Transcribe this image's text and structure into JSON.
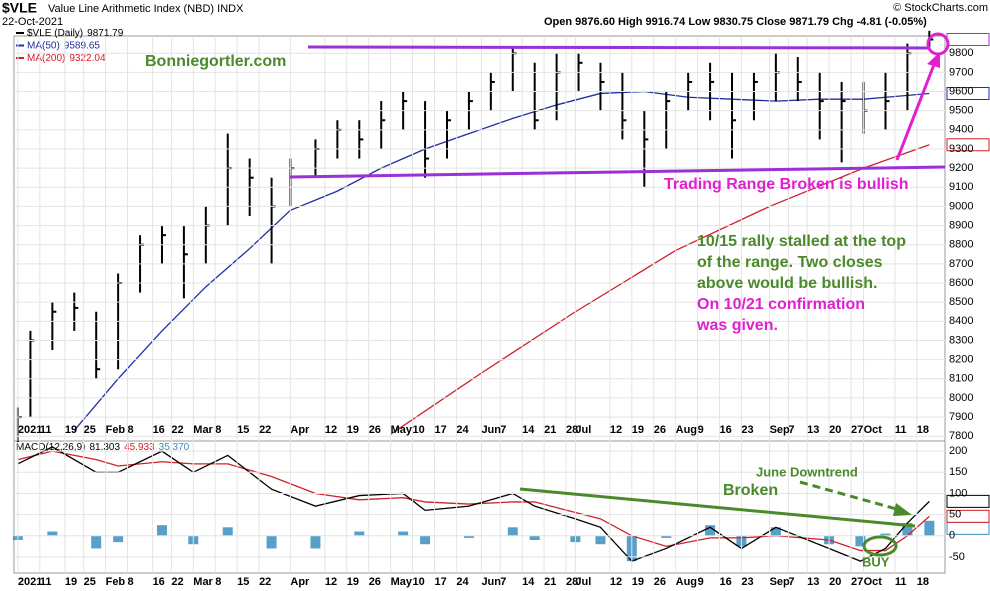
{
  "chart_data": [
    {
      "type": "ohlc",
      "title": "$VLE",
      "subtitle": "Value Line Arithmetic Index (NBD) INDX",
      "date": "22-Oct-2021",
      "source": "© StockCharts.com",
      "quote": [
        "Open 9876.60",
        "High 9916.74",
        "Low 9830.75",
        "Close 9871.79",
        "Chg -4.81 (-0.05%)"
      ],
      "xlim": [
        "2021-01-01",
        "2021-10-27"
      ],
      "ylim": [
        7775,
        9890
      ],
      "grid": true,
      "yticks": [
        7800,
        7900,
        8000,
        8100,
        8200,
        8300,
        8400,
        8500,
        8600,
        8700,
        8800,
        8900,
        9000,
        9100,
        9200,
        9300,
        9400,
        9500,
        9600,
        9700,
        9800
      ],
      "xticks": [
        {
          "value": "2021-01-04",
          "label": "2021"
        },
        {
          "value": "2021-01-11",
          "label": "11"
        },
        {
          "value": "2021-01-19",
          "label": "19"
        },
        {
          "value": "2021-01-25",
          "label": "25"
        },
        {
          "value": "2021-02-01",
          "label": "Feb"
        },
        {
          "value": "2021-02-08",
          "label": "8"
        },
        {
          "value": "2021-02-16",
          "label": "16"
        },
        {
          "value": "2021-02-22",
          "label": "22"
        },
        {
          "value": "2021-03-01",
          "label": "Mar"
        },
        {
          "value": "2021-03-08",
          "label": "8"
        },
        {
          "value": "2021-03-15",
          "label": "15"
        },
        {
          "value": "2021-03-22",
          "label": "22"
        },
        {
          "value": "2021-04-01",
          "label": "Apr"
        },
        {
          "value": "2021-04-12",
          "label": "12"
        },
        {
          "value": "2021-04-19",
          "label": "19"
        },
        {
          "value": "2021-04-26",
          "label": "26"
        },
        {
          "value": "2021-05-03",
          "label": "May"
        },
        {
          "value": "2021-05-10",
          "label": "10"
        },
        {
          "value": "2021-05-17",
          "label": "17"
        },
        {
          "value": "2021-05-24",
          "label": "24"
        },
        {
          "value": "2021-06-01",
          "label": "Jun"
        },
        {
          "value": "2021-06-07",
          "label": "7"
        },
        {
          "value": "2021-06-14",
          "label": "14"
        },
        {
          "value": "2021-06-21",
          "label": "21"
        },
        {
          "value": "2021-06-28",
          "label": "28"
        },
        {
          "value": "2021-07-01",
          "label": "Jul"
        },
        {
          "value": "2021-07-12",
          "label": "12"
        },
        {
          "value": "2021-07-19",
          "label": "19"
        },
        {
          "value": "2021-07-26",
          "label": "26"
        },
        {
          "value": "2021-08-02",
          "label": "Aug"
        },
        {
          "value": "2021-08-09",
          "label": "9"
        },
        {
          "value": "2021-08-16",
          "label": "16"
        },
        {
          "value": "2021-08-23",
          "label": "23"
        },
        {
          "value": "2021-09-01",
          "label": "Sep"
        },
        {
          "value": "2021-09-07",
          "label": "7"
        },
        {
          "value": "2021-09-13",
          "label": "13"
        },
        {
          "value": "2021-09-20",
          "label": "20"
        },
        {
          "value": "2021-09-27",
          "label": "27"
        },
        {
          "value": "2021-10-01",
          "label": "Oct"
        },
        {
          "value": "2021-10-11",
          "label": "11"
        },
        {
          "value": "2021-10-18",
          "label": "18"
        }
      ],
      "series": [
        {
          "name": "$VLE (Daily)",
          "kind": "ohlc",
          "color": "#000000",
          "box_color": "#9b30d9",
          "x": [
            "2021-01-04",
            "2021-01-08",
            "2021-01-15",
            "2021-01-22",
            "2021-01-29",
            "2021-02-05",
            "2021-02-12",
            "2021-02-19",
            "2021-02-26",
            "2021-03-05",
            "2021-03-12",
            "2021-03-19",
            "2021-03-26",
            "2021-04-01",
            "2021-04-09",
            "2021-04-16",
            "2021-04-23",
            "2021-04-30",
            "2021-05-07",
            "2021-05-14",
            "2021-05-21",
            "2021-05-28",
            "2021-06-04",
            "2021-06-11",
            "2021-06-18",
            "2021-06-25",
            "2021-07-02",
            "2021-07-09",
            "2021-07-16",
            "2021-07-23",
            "2021-07-30",
            "2021-08-06",
            "2021-08-13",
            "2021-08-20",
            "2021-08-27",
            "2021-09-03",
            "2021-09-10",
            "2021-09-17",
            "2021-09-24",
            "2021-10-01",
            "2021-10-08",
            "2021-10-15",
            "2021-10-22"
          ],
          "high": [
            7950,
            8350,
            8500,
            8550,
            8450,
            8650,
            8850,
            8900,
            8900,
            9000,
            9380,
            9250,
            9150,
            9250,
            9350,
            9450,
            9450,
            9550,
            9600,
            9550,
            9500,
            9600,
            9700,
            9830,
            9750,
            9800,
            9800,
            9750,
            9700,
            9500,
            9600,
            9700,
            9750,
            9700,
            9700,
            9800,
            9780,
            9700,
            9650,
            9650,
            9700,
            9850,
            9916.74
          ],
          "low": [
            7770,
            7900,
            8250,
            8350,
            8100,
            8150,
            8550,
            8700,
            8520,
            8700,
            8900,
            8950,
            8700,
            9000,
            9150,
            9250,
            9250,
            9300,
            9400,
            9150,
            9250,
            9400,
            9500,
            9600,
            9400,
            9450,
            9600,
            9500,
            9350,
            9100,
            9300,
            9500,
            9450,
            9250,
            9450,
            9550,
            9550,
            9350,
            9230,
            9380,
            9400,
            9500,
            9830.75
          ],
          "values": [
            7900,
            8300,
            8450,
            8470,
            8150,
            8600,
            8800,
            8850,
            8750,
            8900,
            9200,
            9150,
            9000,
            9200,
            9300,
            9400,
            9350,
            9450,
            9550,
            9250,
            9450,
            9550,
            9650,
            9800,
            9450,
            9700,
            9750,
            9650,
            9450,
            9350,
            9550,
            9650,
            9650,
            9450,
            9650,
            9700,
            9650,
            9550,
            9550,
            9500,
            9550,
            9800,
            9871.79
          ]
        },
        {
          "name": "MA(50)",
          "kind": "line",
          "color": "#1f2f9e",
          "x": [
            "2021-01-22",
            "2021-02-05",
            "2021-02-19",
            "2021-03-05",
            "2021-03-19",
            "2021-04-01",
            "2021-04-16",
            "2021-04-30",
            "2021-05-14",
            "2021-05-28",
            "2021-06-11",
            "2021-06-25",
            "2021-07-09",
            "2021-07-23",
            "2021-08-06",
            "2021-08-20",
            "2021-09-03",
            "2021-09-17",
            "2021-10-01",
            "2021-10-22"
          ],
          "values": [
            7830,
            8100,
            8350,
            8580,
            8780,
            8980,
            9080,
            9200,
            9300,
            9380,
            9460,
            9530,
            9590,
            9600,
            9570,
            9560,
            9550,
            9560,
            9560,
            9589.65
          ]
        },
        {
          "name": "MA(200)",
          "kind": "line",
          "color": "#d0202a",
          "x": [
            "2021-05-03",
            "2021-06-01",
            "2021-07-01",
            "2021-08-02",
            "2021-09-01",
            "2021-10-01",
            "2021-10-22"
          ],
          "values": [
            7810,
            8130,
            8450,
            8770,
            9000,
            9200,
            9322.04
          ]
        }
      ],
      "annotations": {
        "site": "Bonniegortler.com",
        "range": "Trading Range Broken is bullish",
        "rally": [
          "10/15 rally stalled at the top",
          "of the range.  Two closes",
          "above would be bullish."
        ],
        "confirm": [
          "On 10/21 confirmation",
          "was given."
        ]
      }
    },
    {
      "type": "macd",
      "title": "MACD(12,26,9)",
      "xlim": [
        "2021-01-01",
        "2021-10-27"
      ],
      "ylim": [
        -88,
        224
      ],
      "grid": true,
      "yticks": [
        -50,
        0,
        50,
        100,
        150,
        200
      ],
      "xticks": [
        {
          "value": "2021-01-04",
          "label": "2021"
        },
        {
          "value": "2021-01-11",
          "label": "11"
        },
        {
          "value": "2021-01-19",
          "label": "19"
        },
        {
          "value": "2021-01-25",
          "label": "25"
        },
        {
          "value": "2021-02-01",
          "label": "Feb"
        },
        {
          "value": "2021-02-08",
          "label": "8"
        },
        {
          "value": "2021-02-16",
          "label": "16"
        },
        {
          "value": "2021-02-22",
          "label": "22"
        },
        {
          "value": "2021-03-01",
          "label": "Mar"
        },
        {
          "value": "2021-03-08",
          "label": "8"
        },
        {
          "value": "2021-03-15",
          "label": "15"
        },
        {
          "value": "2021-03-22",
          "label": "22"
        },
        {
          "value": "2021-04-01",
          "label": "Apr"
        },
        {
          "value": "2021-04-12",
          "label": "12"
        },
        {
          "value": "2021-04-19",
          "label": "19"
        },
        {
          "value": "2021-04-26",
          "label": "26"
        },
        {
          "value": "2021-05-03",
          "label": "May"
        },
        {
          "value": "2021-05-10",
          "label": "10"
        },
        {
          "value": "2021-05-17",
          "label": "17"
        },
        {
          "value": "2021-05-24",
          "label": "24"
        },
        {
          "value": "2021-06-01",
          "label": "Jun"
        },
        {
          "value": "2021-06-07",
          "label": "7"
        },
        {
          "value": "2021-06-14",
          "label": "14"
        },
        {
          "value": "2021-06-21",
          "label": "21"
        },
        {
          "value": "2021-06-28",
          "label": "28"
        },
        {
          "value": "2021-07-01",
          "label": "Jul"
        },
        {
          "value": "2021-07-12",
          "label": "12"
        },
        {
          "value": "2021-07-19",
          "label": "19"
        },
        {
          "value": "2021-07-26",
          "label": "26"
        },
        {
          "value": "2021-08-02",
          "label": "Aug"
        },
        {
          "value": "2021-08-09",
          "label": "9"
        },
        {
          "value": "2021-08-16",
          "label": "16"
        },
        {
          "value": "2021-08-23",
          "label": "23"
        },
        {
          "value": "2021-09-01",
          "label": "Sep"
        },
        {
          "value": "2021-09-07",
          "label": "7"
        },
        {
          "value": "2021-09-13",
          "label": "13"
        },
        {
          "value": "2021-09-20",
          "label": "20"
        },
        {
          "value": "2021-09-27",
          "label": "27"
        },
        {
          "value": "2021-10-01",
          "label": "Oct"
        },
        {
          "value": "2021-10-11",
          "label": "11"
        },
        {
          "value": "2021-10-18",
          "label": "18"
        }
      ],
      "x": [
        "2021-01-04",
        "2021-01-15",
        "2021-01-29",
        "2021-02-05",
        "2021-02-19",
        "2021-03-01",
        "2021-03-12",
        "2021-03-26",
        "2021-04-09",
        "2021-04-23",
        "2021-05-07",
        "2021-05-14",
        "2021-05-28",
        "2021-06-11",
        "2021-06-18",
        "2021-07-01",
        "2021-07-09",
        "2021-07-19",
        "2021-07-30",
        "2021-08-13",
        "2021-08-23",
        "2021-09-03",
        "2021-09-20",
        "2021-09-30",
        "2021-10-08",
        "2021-10-15",
        "2021-10-22"
      ],
      "series": [
        {
          "kind": "bar",
          "color": "#3a8fc0",
          "values": [
            -10,
            10,
            -30,
            -15,
            25,
            -20,
            20,
            -30,
            -30,
            10,
            10,
            -20,
            -5,
            20,
            -10,
            -15,
            -20,
            -60,
            -5,
            25,
            -25,
            20,
            -20,
            -25,
            5,
            30,
            35.37
          ],
          "value_labels": [
            null,
            null,
            null,
            null,
            null,
            null,
            null,
            null,
            null,
            null,
            null,
            null,
            null,
            null,
            null,
            null,
            null,
            null,
            null,
            null,
            null,
            null,
            null,
            null,
            null,
            null,
            "35.370"
          ]
        },
        {
          "kind": "line",
          "color": "#000000",
          "values": [
            170,
            210,
            150,
            150,
            200,
            150,
            190,
            110,
            70,
            95,
            100,
            60,
            70,
            100,
            70,
            40,
            20,
            -60,
            -30,
            20,
            -30,
            20,
            -30,
            -60,
            -30,
            30,
            81.303
          ]
        },
        {
          "kind": "line",
          "color": "#d0202a",
          "values": [
            180,
            200,
            180,
            165,
            175,
            170,
            170,
            140,
            100,
            85,
            90,
            80,
            75,
            80,
            80,
            55,
            40,
            0,
            -25,
            -5,
            -5,
            0,
            -10,
            -35,
            -35,
            0,
            45.933
          ]
        }
      ],
      "annotations": {
        "downtrend": [
          "June Downtrend",
          "Broken"
        ],
        "buy": "BUY"
      }
    }
  ]
}
